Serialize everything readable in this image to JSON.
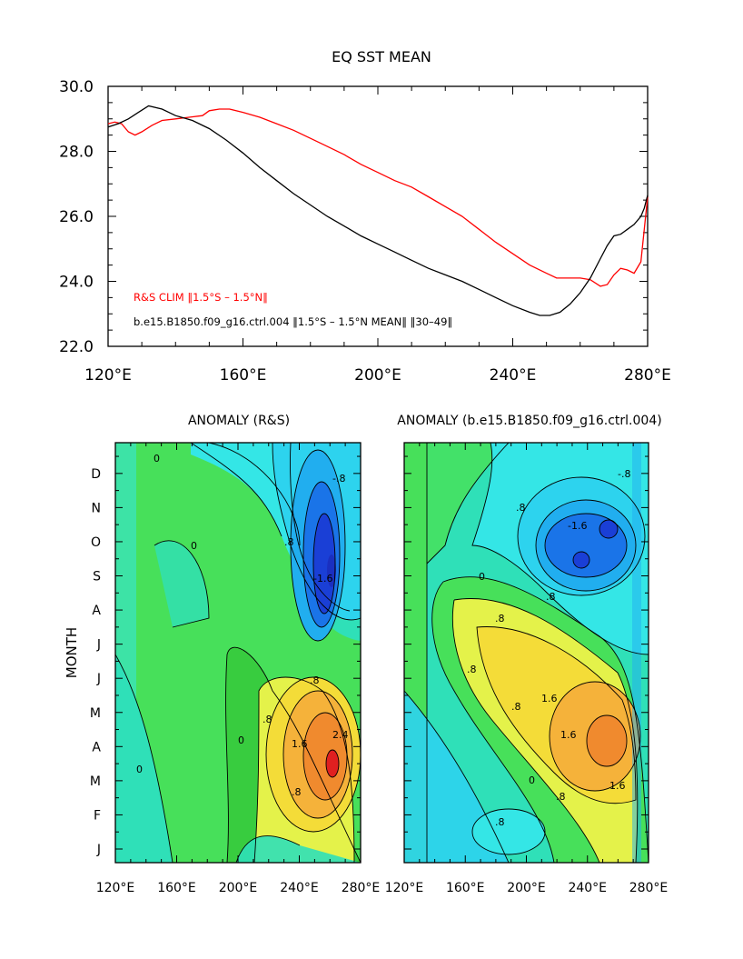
{
  "chart_data": [
    {
      "type": "line",
      "title": "EQ SST MEAN",
      "xlabel": "",
      "ylabel": "",
      "xlim": [
        120,
        280
      ],
      "ylim": [
        22,
        30
      ],
      "x_ticks": [
        "120°E",
        "160°E",
        "200°E",
        "240°E",
        "280°E"
      ],
      "y_ticks": [
        "22.0",
        "24.0",
        "26.0",
        "28.0",
        "30.0"
      ],
      "legend": "bottom-left",
      "series": [
        {
          "name": "R&S CLIM ‖1.5°S – 1.5°N‖",
          "color": "#ff0000",
          "points": [
            [
              120,
              28.85
            ],
            [
              122,
              28.9
            ],
            [
              124,
              28.85
            ],
            [
              126,
              28.6
            ],
            [
              128,
              28.5
            ],
            [
              130,
              28.6
            ],
            [
              133,
              28.8
            ],
            [
              136,
              28.95
            ],
            [
              140,
              29.0
            ],
            [
              144,
              29.05
            ],
            [
              148,
              29.1
            ],
            [
              150,
              29.25
            ],
            [
              153,
              29.3
            ],
            [
              156,
              29.3
            ],
            [
              160,
              29.2
            ],
            [
              165,
              29.05
            ],
            [
              170,
              28.85
            ],
            [
              175,
              28.65
            ],
            [
              180,
              28.4
            ],
            [
              185,
              28.15
            ],
            [
              190,
              27.9
            ],
            [
              195,
              27.6
            ],
            [
              200,
              27.35
            ],
            [
              205,
              27.1
            ],
            [
              210,
              26.9
            ],
            [
              215,
              26.6
            ],
            [
              220,
              26.3
            ],
            [
              225,
              26.0
            ],
            [
              230,
              25.6
            ],
            [
              235,
              25.2
            ],
            [
              240,
              24.85
            ],
            [
              245,
              24.5
            ],
            [
              250,
              24.25
            ],
            [
              253,
              24.1
            ],
            [
              256,
              24.1
            ],
            [
              260,
              24.1
            ],
            [
              263,
              24.05
            ],
            [
              266,
              23.85
            ],
            [
              268,
              23.9
            ],
            [
              270,
              24.2
            ],
            [
              272,
              24.4
            ],
            [
              274,
              24.35
            ],
            [
              276,
              24.25
            ],
            [
              278,
              24.6
            ],
            [
              279,
              25.6
            ],
            [
              280,
              26.6
            ]
          ]
        },
        {
          "name": "b.e15.B1850.f09_g16.ctrl.004 ‖1.5°S – 1.5°N MEAN‖ ‖30–49‖",
          "color": "#000000",
          "points": [
            [
              120,
              28.75
            ],
            [
              123,
              28.85
            ],
            [
              126,
              29.0
            ],
            [
              129,
              29.2
            ],
            [
              132,
              29.4
            ],
            [
              136,
              29.3
            ],
            [
              140,
              29.1
            ],
            [
              145,
              28.95
            ],
            [
              150,
              28.7
            ],
            [
              155,
              28.35
            ],
            [
              160,
              27.95
            ],
            [
              165,
              27.5
            ],
            [
              170,
              27.1
            ],
            [
              175,
              26.7
            ],
            [
              180,
              26.35
            ],
            [
              185,
              26.0
            ],
            [
              190,
              25.7
            ],
            [
              195,
              25.4
            ],
            [
              200,
              25.15
            ],
            [
              205,
              24.9
            ],
            [
              210,
              24.65
            ],
            [
              215,
              24.4
            ],
            [
              220,
              24.2
            ],
            [
              225,
              24.0
            ],
            [
              230,
              23.75
            ],
            [
              235,
              23.5
            ],
            [
              240,
              23.25
            ],
            [
              245,
              23.05
            ],
            [
              248,
              22.95
            ],
            [
              251,
              22.95
            ],
            [
              254,
              23.05
            ],
            [
              257,
              23.3
            ],
            [
              260,
              23.65
            ],
            [
              263,
              24.1
            ],
            [
              266,
              24.7
            ],
            [
              268,
              25.1
            ],
            [
              270,
              25.4
            ],
            [
              272,
              25.45
            ],
            [
              274,
              25.6
            ],
            [
              276,
              25.75
            ],
            [
              278,
              26.0
            ],
            [
              279,
              26.25
            ],
            [
              280,
              26.65
            ]
          ]
        }
      ]
    },
    {
      "type": "heatmap",
      "title": "ANOMALY (R&S)",
      "xlabel": "",
      "ylabel": "MONTH",
      "x_ticks": [
        "120°E",
        "160°E",
        "200°E",
        "240°E",
        "280°E"
      ],
      "y_ticks": [
        "J",
        "F",
        "M",
        "A",
        "M",
        "J",
        "J",
        "A",
        "S",
        "O",
        "N",
        "D"
      ],
      "contour_labels": [
        "0",
        ".8",
        "1.6",
        "2.4",
        "-.8",
        "-1.6"
      ],
      "features": [
        {
          "lon": 264,
          "month": 3.2,
          "value": 2.8,
          "sign": "warm"
        },
        {
          "lon": 265,
          "month": 8.3,
          "value": -2.0,
          "sign": "cold"
        }
      ]
    },
    {
      "type": "heatmap",
      "title": "ANOMALY (b.e15.B1850.f09_g16.ctrl.004)",
      "xlabel": "",
      "ylabel": "",
      "x_ticks": [
        "120°E",
        "160°E",
        "200°E",
        "240°E",
        "280°E"
      ],
      "y_ticks": [
        "J",
        "F",
        "M",
        "A",
        "M",
        "J",
        "J",
        "A",
        "S",
        "O",
        "N",
        "D"
      ],
      "contour_labels": [
        "0",
        ".8",
        "1.6",
        "-.8",
        "-1.6"
      ],
      "features": [
        {
          "lon": 250,
          "month": 3.8,
          "value": 2.0,
          "sign": "warm"
        },
        {
          "lon": 240,
          "month": 9.0,
          "value": -1.8,
          "sign": "cold"
        }
      ]
    }
  ]
}
